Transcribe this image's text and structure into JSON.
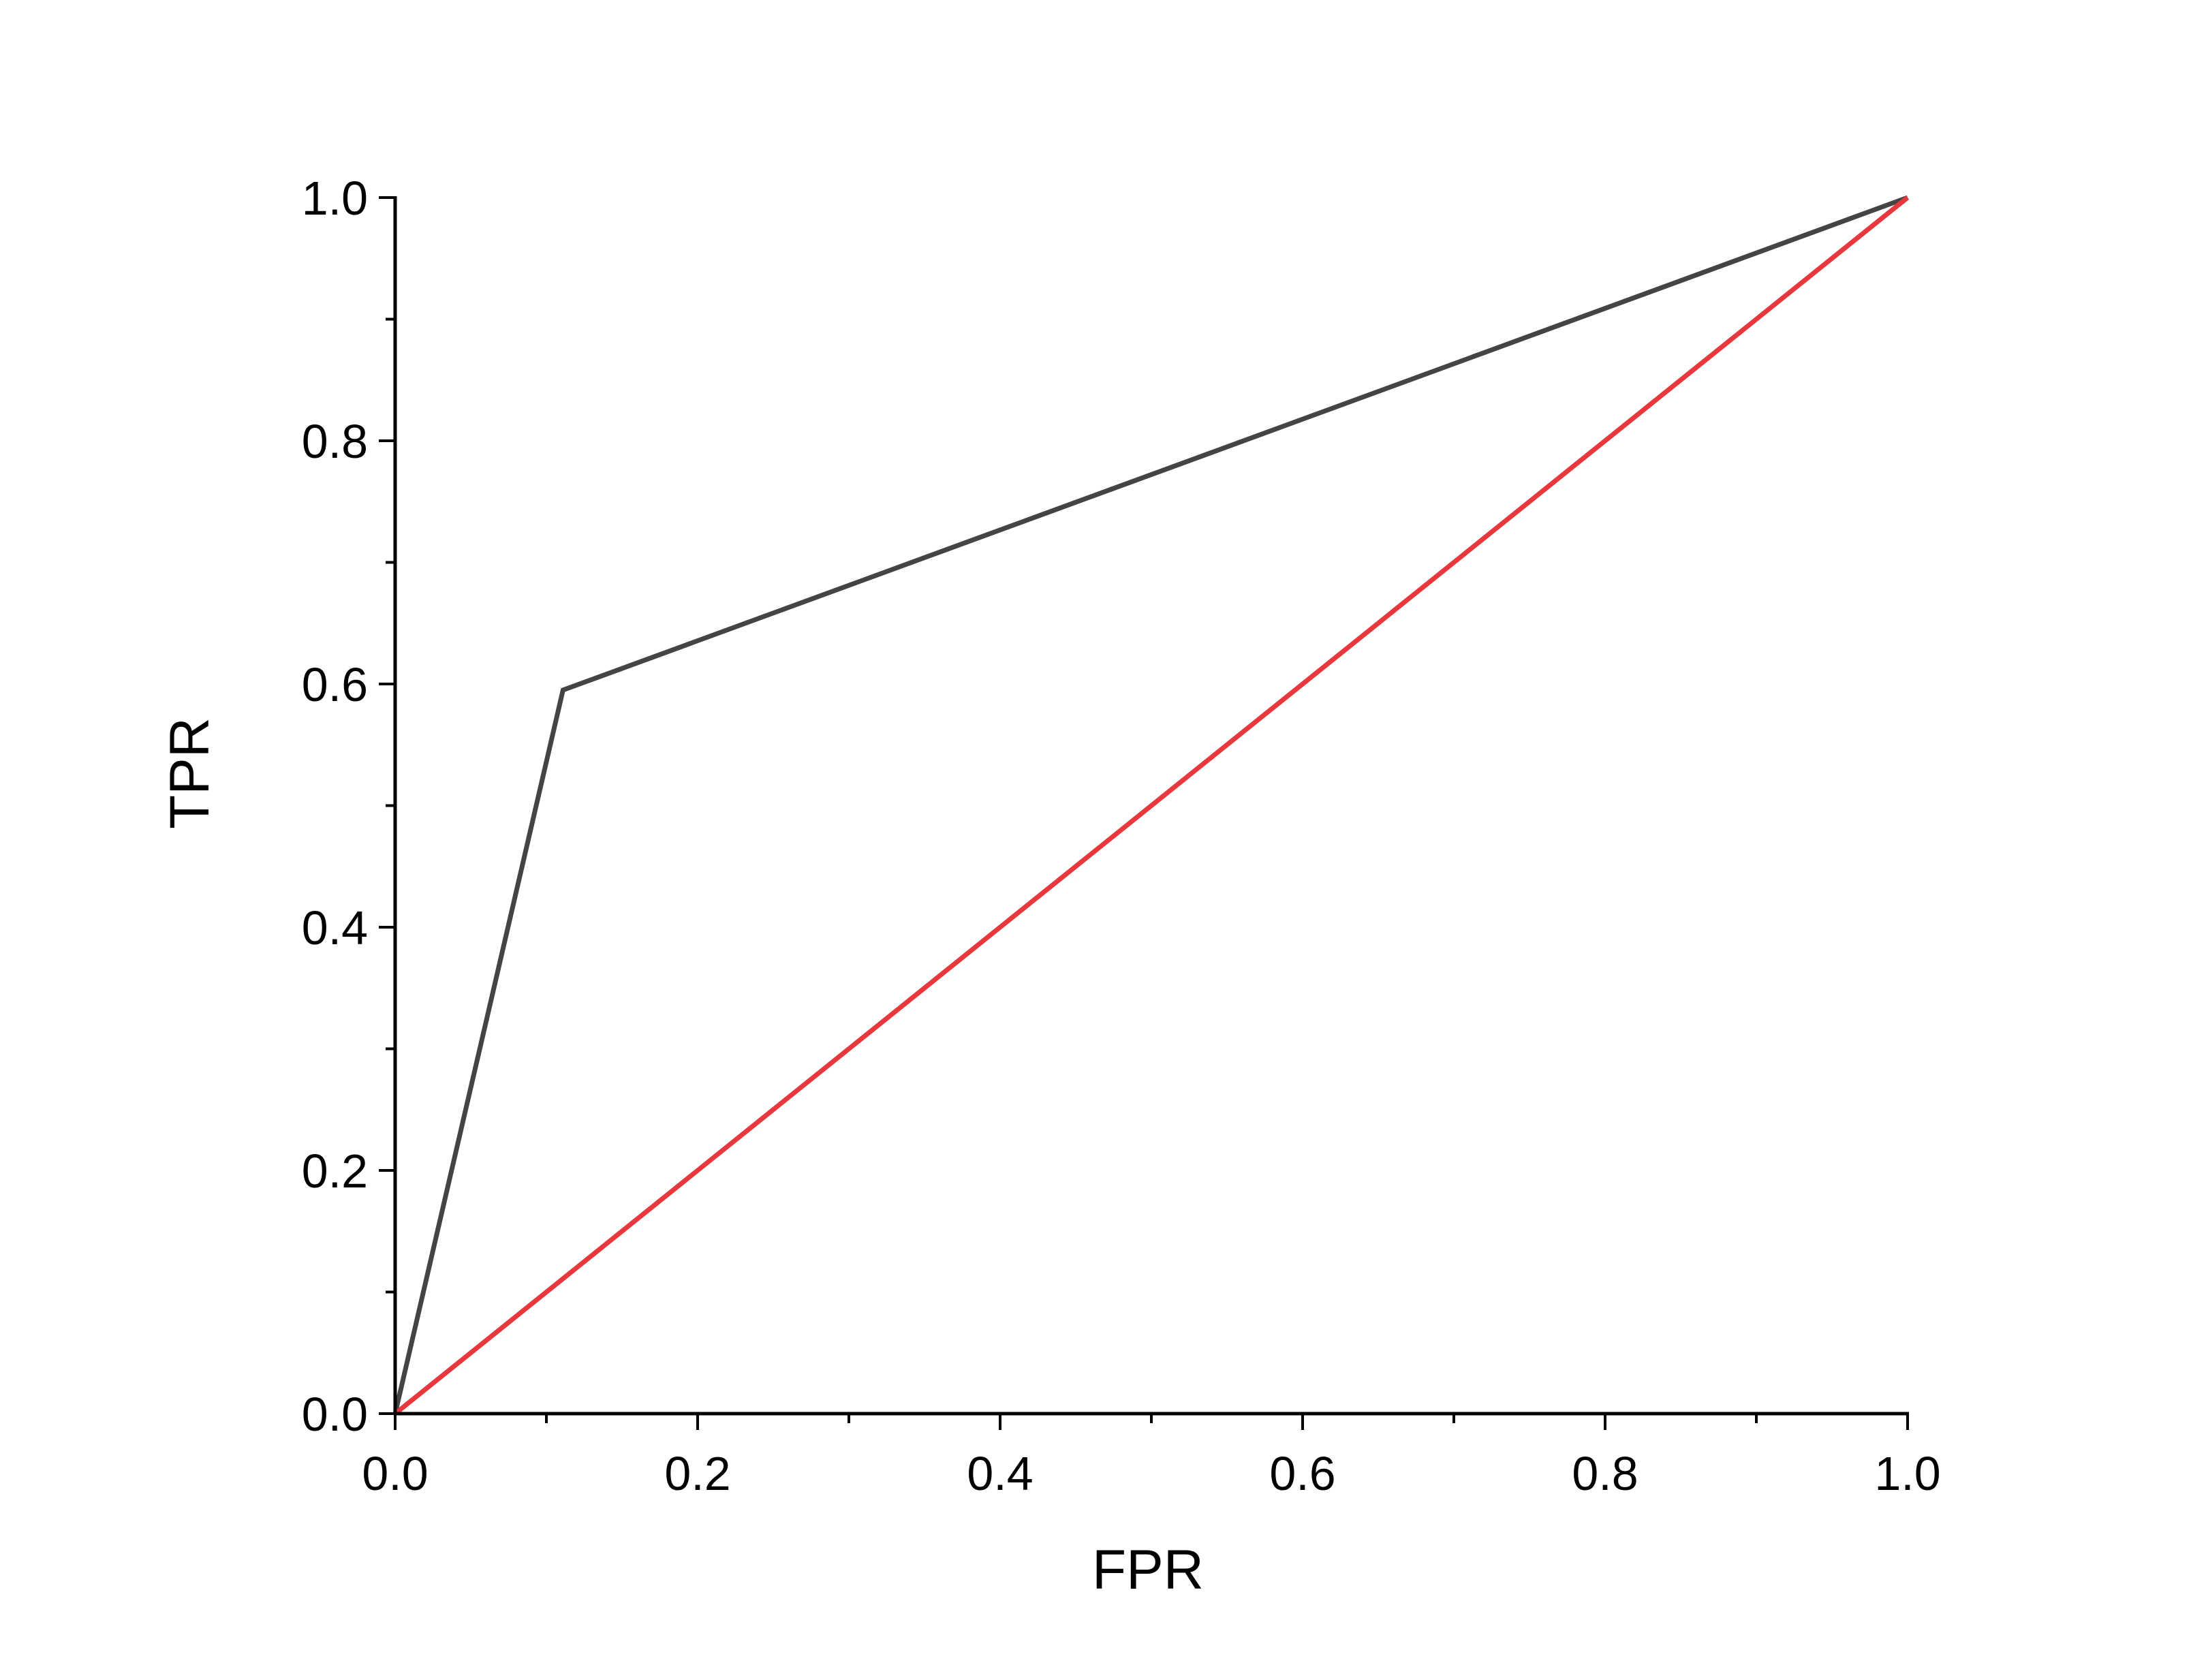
{
  "chart_data": {
    "type": "line",
    "xlabel": "FPR",
    "ylabel": "TPR",
    "xlim": [
      0,
      1
    ],
    "ylim": [
      0,
      1
    ],
    "x_ticks": [
      "0.0",
      "0.2",
      "0.4",
      "0.6",
      "0.8",
      "1.0"
    ],
    "y_ticks": [
      "0.0",
      "0.2",
      "0.4",
      "0.6",
      "0.8",
      "1.0"
    ],
    "grid": false,
    "legend": "none",
    "series": [
      {
        "color": "#444444",
        "x": [
          0.0,
          0.111,
          1.0
        ],
        "y": [
          0.0,
          0.595,
          1.0
        ]
      },
      {
        "color": "#e8383d",
        "x": [
          0.0,
          1.0
        ],
        "y": [
          0.0,
          1.0
        ]
      }
    ]
  }
}
